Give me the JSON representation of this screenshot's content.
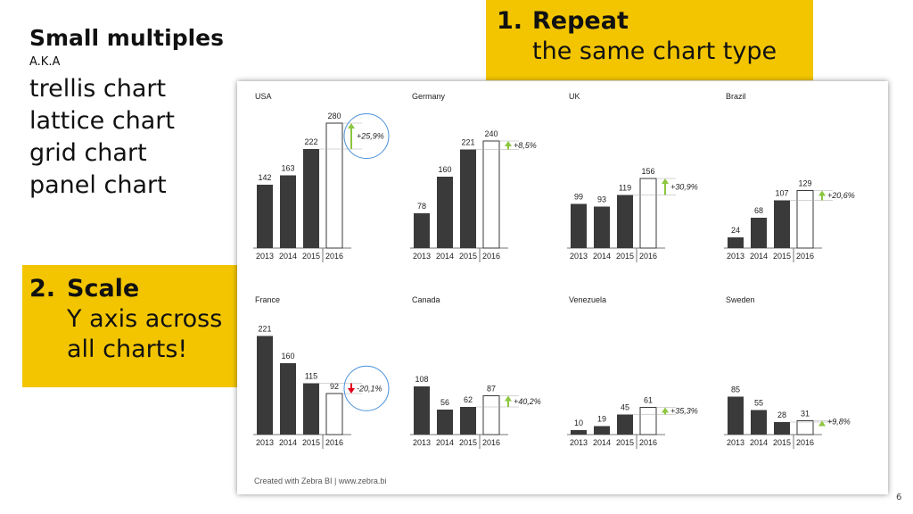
{
  "slide": {
    "title": "Small multiples",
    "aka": "A.K.A",
    "aliases": [
      "trellis chart",
      "lattice chart",
      "grid chart",
      "panel chart"
    ],
    "callout1": {
      "number": "1.",
      "heading": "Repeat",
      "text": "the same chart type"
    },
    "callout2": {
      "number": "2.",
      "heading": "Scale",
      "text_lines": [
        "Y axis across",
        "all charts!"
      ]
    },
    "credit": "Created with Zebra BI  |  www.zebra.bi",
    "page_number": "6"
  },
  "colors": {
    "callout": "#f2c500",
    "bar_actual": "#3a3a3a",
    "bar_forecast": "#ffffff",
    "positive": "#8cc63f",
    "negative": "#e2001a",
    "highlight_circle": "#4a90d9"
  },
  "chart_data": [
    {
      "type": "bar",
      "title": "USA",
      "categories": [
        "2013",
        "2014",
        "2015",
        "2016"
      ],
      "values": [
        142,
        163,
        222,
        280
      ],
      "variance": "+25,9%",
      "direction": "up",
      "highlighted": true
    },
    {
      "type": "bar",
      "title": "Germany",
      "categories": [
        "2013",
        "2014",
        "2015",
        "2016"
      ],
      "values": [
        78,
        160,
        221,
        240
      ],
      "variance": "+8,5%",
      "direction": "up",
      "highlighted": false
    },
    {
      "type": "bar",
      "title": "UK",
      "categories": [
        "2013",
        "2014",
        "2015",
        "2016"
      ],
      "values": [
        99,
        93,
        119,
        156
      ],
      "variance": "+30,9%",
      "direction": "up",
      "highlighted": false
    },
    {
      "type": "bar",
      "title": "Brazil",
      "categories": [
        "2013",
        "2014",
        "2015",
        "2016"
      ],
      "values": [
        24,
        68,
        107,
        129
      ],
      "variance": "+20,6%",
      "direction": "up",
      "highlighted": false
    },
    {
      "type": "bar",
      "title": "France",
      "categories": [
        "2013",
        "2014",
        "2015",
        "2016"
      ],
      "values": [
        221,
        160,
        115,
        92
      ],
      "variance": "-20,1%",
      "direction": "down",
      "highlighted": true
    },
    {
      "type": "bar",
      "title": "Canada",
      "categories": [
        "2013",
        "2014",
        "2015",
        "2016"
      ],
      "values": [
        108,
        56,
        62,
        87
      ],
      "variance": "+40,2%",
      "direction": "up",
      "highlighted": false
    },
    {
      "type": "bar",
      "title": "Venezuela",
      "categories": [
        "2013",
        "2014",
        "2015",
        "2016"
      ],
      "values": [
        10,
        19,
        45,
        61
      ],
      "variance": "+35,3%",
      "direction": "up",
      "highlighted": false
    },
    {
      "type": "bar",
      "title": "Sweden",
      "categories": [
        "2013",
        "2014",
        "2015",
        "2016"
      ],
      "values": [
        85,
        55,
        28,
        31
      ],
      "variance": "+9,8%",
      "direction": "up",
      "highlighted": false
    }
  ]
}
